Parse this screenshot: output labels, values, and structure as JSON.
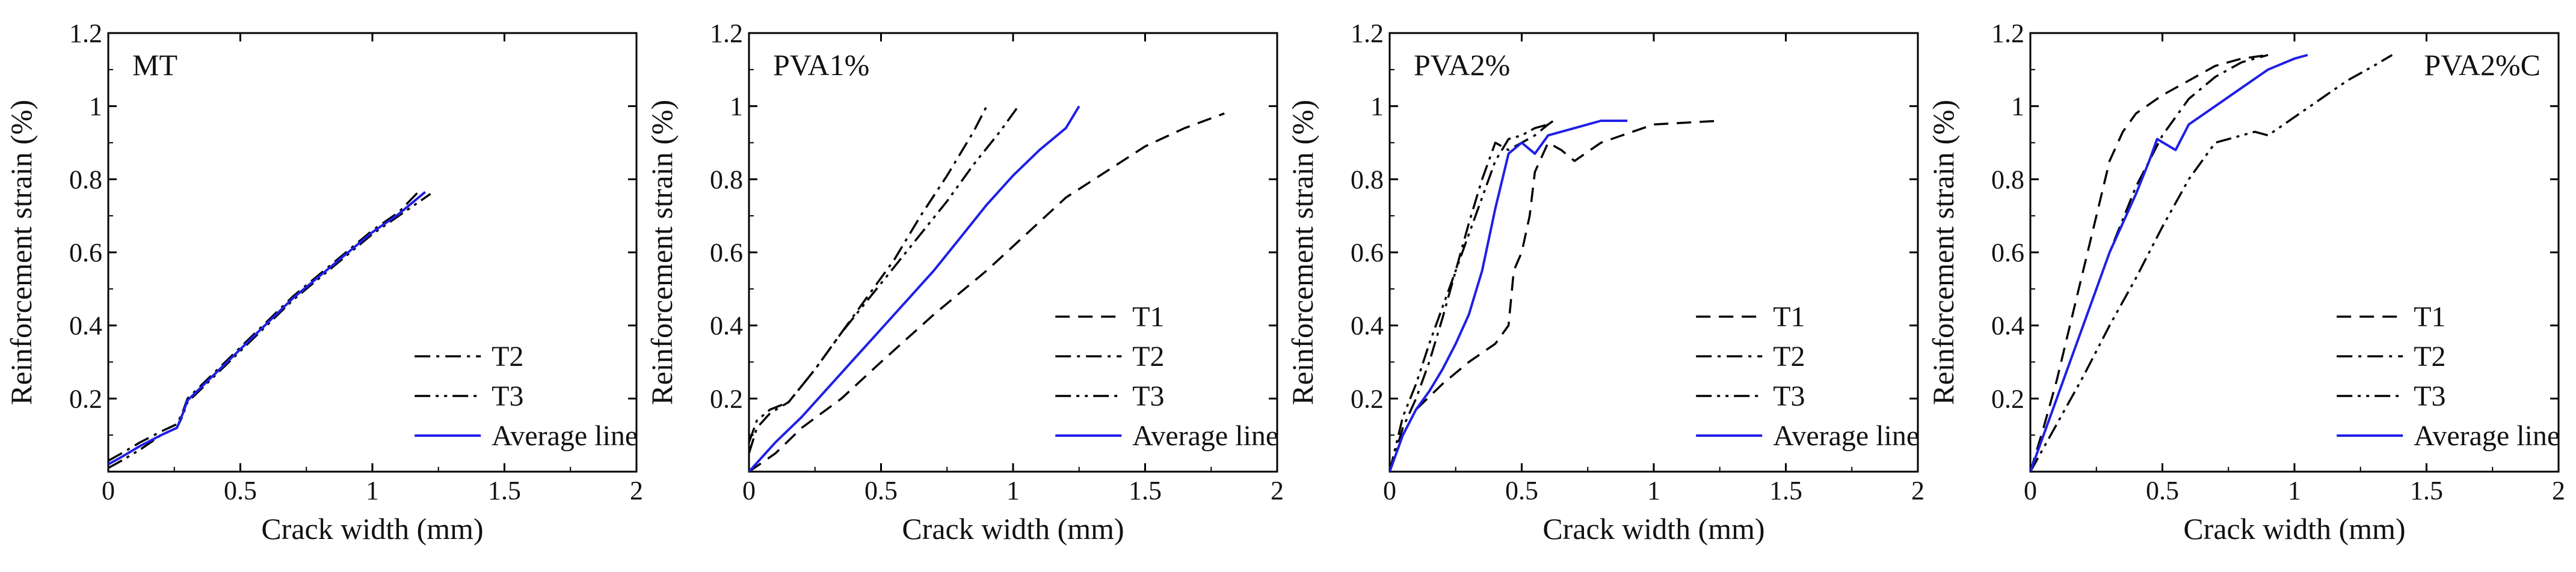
{
  "chart_data": [
    {
      "type": "line",
      "title": "MT",
      "xlabel": "Crack width (mm)",
      "ylabel": "Reinforcement strain (%)",
      "xlim": [
        0,
        2
      ],
      "ylim": [
        0,
        1.2
      ],
      "xticks": [
        "0",
        "0.5",
        "1",
        "1.5",
        "2"
      ],
      "yticks": [
        "0.2",
        "0.4",
        "0.6",
        "0.8",
        "1",
        "1.2"
      ],
      "legend_position": "bottom-right",
      "series": [
        {
          "name": "T2",
          "style": "dashdot",
          "color": "#000000",
          "x": [
            0,
            0.05,
            0.12,
            0.2,
            0.26,
            0.28,
            0.3,
            0.4,
            0.5,
            0.6,
            0.7,
            0.8,
            0.9,
            1.0,
            1.1,
            1.18
          ],
          "y": [
            0.03,
            0.05,
            0.08,
            0.11,
            0.13,
            0.16,
            0.2,
            0.27,
            0.34,
            0.41,
            0.48,
            0.54,
            0.6,
            0.66,
            0.71,
            0.77
          ]
        },
        {
          "name": "T3",
          "style": "dashdotdot",
          "color": "#000000",
          "x": [
            0,
            0.05,
            0.12,
            0.2,
            0.26,
            0.28,
            0.3,
            0.4,
            0.5,
            0.6,
            0.7,
            0.8,
            0.9,
            1.0,
            1.1,
            1.22
          ],
          "y": [
            0.01,
            0.03,
            0.06,
            0.1,
            0.12,
            0.15,
            0.19,
            0.26,
            0.33,
            0.4,
            0.47,
            0.53,
            0.59,
            0.65,
            0.7,
            0.76
          ]
        },
        {
          "name": "Average line",
          "style": "solid",
          "color": "#1f1fe6",
          "x": [
            0,
            0.05,
            0.12,
            0.2,
            0.26,
            0.28,
            0.3,
            0.4,
            0.5,
            0.6,
            0.7,
            0.8,
            0.9,
            1.0,
            1.1,
            1.2
          ],
          "y": [
            0.02,
            0.04,
            0.07,
            0.1,
            0.12,
            0.155,
            0.195,
            0.265,
            0.335,
            0.405,
            0.475,
            0.535,
            0.595,
            0.655,
            0.705,
            0.765
          ]
        }
      ]
    },
    {
      "type": "line",
      "title": "PVA1%",
      "xlabel": "Crack width (mm)",
      "ylabel": "Reinforcement strain (%)",
      "xlim": [
        0,
        2
      ],
      "ylim": [
        0,
        1.2
      ],
      "xticks": [
        "0",
        "0.5",
        "1",
        "1.5",
        "2"
      ],
      "yticks": [
        "0.2",
        "0.4",
        "0.6",
        "0.8",
        "1",
        "1.2"
      ],
      "legend_position": "bottom-right",
      "series": [
        {
          "name": "T1",
          "style": "dashed",
          "color": "#000000",
          "x": [
            0,
            0.1,
            0.2,
            0.35,
            0.5,
            0.7,
            0.9,
            1.05,
            1.2,
            1.35,
            1.5,
            1.65,
            1.8
          ],
          "y": [
            0,
            0.05,
            0.12,
            0.2,
            0.3,
            0.43,
            0.55,
            0.65,
            0.75,
            0.82,
            0.89,
            0.94,
            0.98
          ]
        },
        {
          "name": "T2",
          "style": "dashdot",
          "color": "#000000",
          "x": [
            0,
            0.03,
            0.08,
            0.15,
            0.25,
            0.35,
            0.45,
            0.55,
            0.65,
            0.75,
            0.85,
            0.9
          ],
          "y": [
            0.05,
            0.12,
            0.16,
            0.19,
            0.28,
            0.38,
            0.48,
            0.58,
            0.7,
            0.81,
            0.93,
            1.0
          ]
        },
        {
          "name": "T3",
          "style": "dashdotdot",
          "color": "#000000",
          "x": [
            0,
            0.03,
            0.08,
            0.15,
            0.25,
            0.35,
            0.45,
            0.55,
            0.65,
            0.75,
            0.85,
            0.95,
            1.02
          ],
          "y": [
            0.08,
            0.14,
            0.17,
            0.19,
            0.28,
            0.38,
            0.47,
            0.56,
            0.65,
            0.74,
            0.84,
            0.93,
            1.0
          ]
        },
        {
          "name": "Average line",
          "style": "solid",
          "color": "#1f1fe6",
          "x": [
            0,
            0.1,
            0.2,
            0.3,
            0.4,
            0.5,
            0.6,
            0.7,
            0.8,
            0.9,
            1.0,
            1.1,
            1.2,
            1.25
          ],
          "y": [
            0,
            0.08,
            0.15,
            0.23,
            0.31,
            0.39,
            0.47,
            0.55,
            0.64,
            0.73,
            0.81,
            0.88,
            0.94,
            1.0
          ]
        }
      ]
    },
    {
      "type": "line",
      "title": "PVA2%",
      "xlabel": "Crack width (mm)",
      "ylabel": "Reinforcement strain (%)",
      "xlim": [
        0,
        2
      ],
      "ylim": [
        0,
        1.2
      ],
      "xticks": [
        "0",
        "0.5",
        "1",
        "1.5",
        "2"
      ],
      "yticks": [
        "0.2",
        "0.4",
        "0.6",
        "0.8",
        "1",
        "1.2"
      ],
      "legend_position": "bottom-right",
      "series": [
        {
          "name": "T1",
          "style": "dashed",
          "color": "#000000",
          "x": [
            0,
            0.05,
            0.1,
            0.2,
            0.3,
            0.4,
            0.45,
            0.47,
            0.5,
            0.53,
            0.55,
            0.6,
            0.65,
            0.7,
            0.8,
            1.0,
            1.25
          ],
          "y": [
            0,
            0.1,
            0.17,
            0.24,
            0.3,
            0.35,
            0.4,
            0.55,
            0.6,
            0.7,
            0.82,
            0.9,
            0.88,
            0.85,
            0.9,
            0.95,
            0.96
          ]
        },
        {
          "name": "T2",
          "style": "dashdot",
          "color": "#000000",
          "x": [
            0,
            0.05,
            0.1,
            0.15,
            0.2,
            0.25,
            0.3,
            0.35,
            0.4,
            0.45,
            0.5,
            0.55,
            0.6,
            0.62
          ],
          "y": [
            0,
            0.12,
            0.2,
            0.3,
            0.42,
            0.55,
            0.68,
            0.8,
            0.9,
            0.88,
            0.9,
            0.92,
            0.95,
            0.96
          ]
        },
        {
          "name": "T3",
          "style": "dashdotdot",
          "color": "#000000",
          "x": [
            0,
            0.05,
            0.1,
            0.15,
            0.2,
            0.25,
            0.3,
            0.35,
            0.4,
            0.45,
            0.5,
            0.55,
            0.6
          ],
          "y": [
            0,
            0.15,
            0.24,
            0.35,
            0.45,
            0.55,
            0.65,
            0.75,
            0.85,
            0.91,
            0.92,
            0.94,
            0.95
          ]
        },
        {
          "name": "Average line",
          "style": "solid",
          "color": "#1f1fe6",
          "x": [
            0,
            0.05,
            0.1,
            0.15,
            0.2,
            0.25,
            0.3,
            0.35,
            0.4,
            0.45,
            0.5,
            0.55,
            0.6,
            0.7,
            0.8,
            0.9
          ],
          "y": [
            0,
            0.1,
            0.17,
            0.22,
            0.28,
            0.35,
            0.43,
            0.55,
            0.72,
            0.87,
            0.9,
            0.87,
            0.92,
            0.94,
            0.96,
            0.96
          ]
        }
      ]
    },
    {
      "type": "line",
      "title": "PVA2%C",
      "xlabel": "Crack width (mm)",
      "ylabel": "Reinforcement strain (%)",
      "xlim": [
        0,
        2
      ],
      "ylim": [
        0,
        1.2
      ],
      "xticks": [
        "0",
        "0.5",
        "1",
        "1.5",
        "2"
      ],
      "yticks": [
        "0.2",
        "0.4",
        "0.6",
        "0.8",
        "1",
        "1.2"
      ],
      "legend_position": "bottom-right",
      "series": [
        {
          "name": "T1",
          "style": "dashed",
          "color": "#000000",
          "x": [
            0,
            0.05,
            0.1,
            0.15,
            0.2,
            0.25,
            0.3,
            0.35,
            0.4,
            0.5,
            0.6,
            0.7,
            0.8,
            0.9
          ],
          "y": [
            0,
            0.12,
            0.25,
            0.4,
            0.55,
            0.7,
            0.85,
            0.93,
            0.98,
            1.03,
            1.07,
            1.11,
            1.13,
            1.14
          ]
        },
        {
          "name": "T2",
          "style": "dashdot",
          "color": "#000000",
          "x": [
            0,
            0.1,
            0.2,
            0.3,
            0.4,
            0.5,
            0.6,
            0.7,
            0.8,
            0.9
          ],
          "y": [
            0,
            0.2,
            0.4,
            0.6,
            0.78,
            0.92,
            1.02,
            1.08,
            1.12,
            1.14
          ]
        },
        {
          "name": "T3",
          "style": "dashdotdot",
          "color": "#000000",
          "x": [
            0,
            0.1,
            0.2,
            0.3,
            0.4,
            0.5,
            0.6,
            0.7,
            0.85,
            0.9,
            1.0,
            1.1,
            1.2,
            1.3,
            1.37
          ],
          "y": [
            0,
            0.13,
            0.26,
            0.4,
            0.53,
            0.67,
            0.8,
            0.9,
            0.93,
            0.92,
            0.97,
            1.02,
            1.07,
            1.11,
            1.14
          ]
        },
        {
          "name": "Average line",
          "style": "solid",
          "color": "#1f1fe6",
          "x": [
            0,
            0.05,
            0.1,
            0.15,
            0.2,
            0.25,
            0.3,
            0.35,
            0.4,
            0.45,
            0.48,
            0.55,
            0.6,
            0.7,
            0.8,
            0.9,
            1.0,
            1.05
          ],
          "y": [
            0,
            0.1,
            0.2,
            0.3,
            0.4,
            0.5,
            0.6,
            0.68,
            0.76,
            0.85,
            0.91,
            0.88,
            0.95,
            1.0,
            1.05,
            1.1,
            1.13,
            1.14
          ]
        }
      ]
    }
  ]
}
